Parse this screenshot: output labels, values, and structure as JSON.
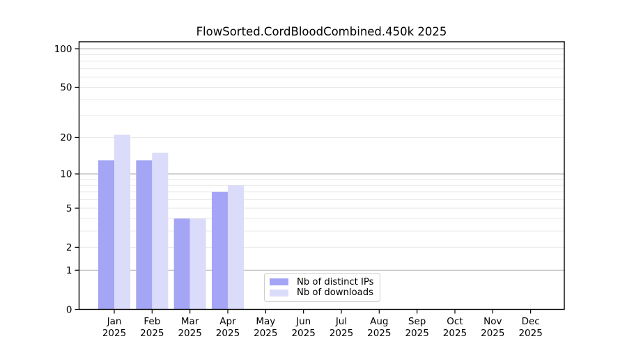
{
  "chart_data": {
    "type": "bar",
    "title": "FlowSorted.CordBloodCombined.450k 2025",
    "categories": [
      "Jan 2025",
      "Feb 2025",
      "Mar 2025",
      "Apr 2025",
      "May 2025",
      "Jun 2025",
      "Jul 2025",
      "Aug 2025",
      "Sep 2025",
      "Oct 2025",
      "Nov 2025",
      "Dec 2025"
    ],
    "series": [
      {
        "name": "Nb of distinct IPs",
        "color": "#a5a5f5",
        "values": [
          13,
          13,
          4,
          7,
          0,
          0,
          0,
          0,
          0,
          0,
          0,
          0
        ]
      },
      {
        "name": "Nb of downloads",
        "color": "#dbdbfa",
        "values": [
          21,
          15,
          4,
          8,
          0,
          0,
          0,
          0,
          0,
          0,
          0,
          0
        ]
      }
    ],
    "xlabel": "",
    "ylabel": "",
    "yscale": "log1p",
    "ylim": [
      0,
      112
    ],
    "yticks": [
      0,
      1,
      2,
      5,
      10,
      20,
      50,
      100
    ],
    "major_gridlines": [
      1,
      10,
      100
    ],
    "minor_gridlines": [
      2,
      3,
      4,
      5,
      6,
      7,
      8,
      9,
      20,
      30,
      40,
      50,
      60,
      70,
      80,
      90
    ],
    "grid": "on",
    "legend_position": "lower center",
    "colors": {
      "spine": "#000000",
      "grid_major": "#b0b0b0",
      "grid_minor": "#e9e9e9",
      "background": "#ffffff"
    }
  },
  "legend": {
    "items": [
      {
        "label": "Nb of distinct IPs",
        "color": "#a5a5f5"
      },
      {
        "label": "Nb of downloads",
        "color": "#dbdbfa"
      }
    ]
  }
}
